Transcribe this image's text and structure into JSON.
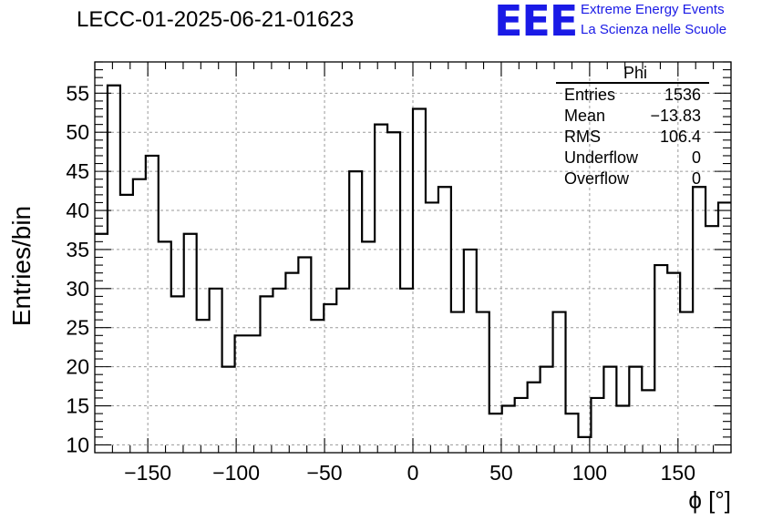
{
  "chart_data": {
    "type": "histogram",
    "title": "LECC-01-2025-06-21-01623",
    "xlabel": "ϕ [°]",
    "ylabel": "Entries/bin",
    "xlim": [
      -180,
      180
    ],
    "ylim": [
      9,
      59
    ],
    "bin_width": 7.2,
    "x_ticks": [
      -150,
      -100,
      -50,
      0,
      50,
      100,
      150
    ],
    "x_tick_labels": [
      "−150",
      "−100",
      "−50",
      "0",
      "50",
      "100",
      "150"
    ],
    "y_ticks": [
      10,
      15,
      20,
      25,
      30,
      35,
      40,
      45,
      50,
      55
    ],
    "y_tick_labels": [
      "10",
      "15",
      "20",
      "25",
      "30",
      "35",
      "40",
      "45",
      "50",
      "55"
    ],
    "values": [
      56,
      42,
      44,
      47,
      36,
      29,
      37,
      26,
      30,
      20,
      24,
      24,
      29,
      30,
      32,
      34,
      26,
      28,
      30,
      45,
      36,
      51,
      50,
      30,
      53,
      41,
      43,
      27,
      35,
      27,
      14,
      15,
      16,
      18,
      20,
      27,
      14,
      11,
      16,
      20,
      15,
      20,
      17,
      33,
      32,
      27,
      43,
      38,
      41
    ],
    "first_bin_partial": 37,
    "grid": true,
    "stats_box": {
      "name": "Phi",
      "rows": [
        {
          "label": "Entries",
          "value": "1536"
        },
        {
          "label": "Mean",
          "value": "−13.83"
        },
        {
          "label": "RMS",
          "value": "106.4"
        },
        {
          "label": "Underflow",
          "value": "0"
        },
        {
          "label": "Overflow",
          "value": "0"
        }
      ]
    }
  },
  "logo": {
    "mark": "EEE",
    "line1": "Extreme Energy Events",
    "line2": "La Scienza nelle Scuole",
    "color": "#1a1ae6"
  }
}
